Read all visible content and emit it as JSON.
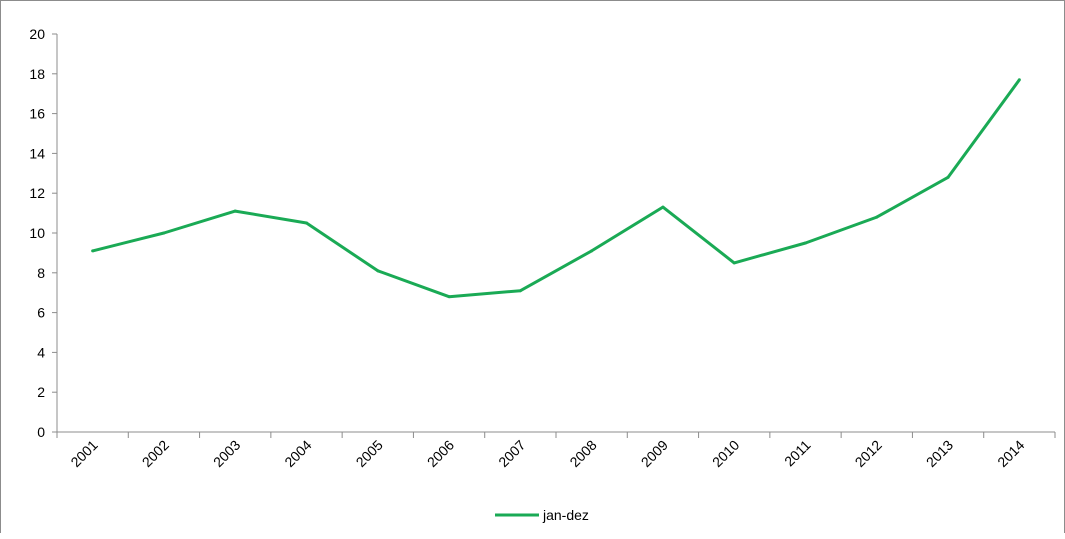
{
  "chart_data": {
    "type": "line",
    "categories": [
      "2001",
      "2002",
      "2003",
      "2004",
      "2005",
      "2006",
      "2007",
      "2008",
      "2009",
      "2010",
      "2011",
      "2012",
      "2013",
      "2014"
    ],
    "series": [
      {
        "name": "jan-dez",
        "color": "#1aaa55",
        "values": [
          9.1,
          10.0,
          11.1,
          10.5,
          8.1,
          6.8,
          7.1,
          9.1,
          11.3,
          8.5,
          9.5,
          10.8,
          12.8,
          17.7
        ]
      }
    ],
    "yticks": [
      "0",
      "2",
      "4",
      "6",
      "8",
      "10",
      "12",
      "14",
      "16",
      "18",
      "20"
    ],
    "ylim": [
      0,
      20
    ],
    "grid": false,
    "legend_position": "bottom-center"
  }
}
